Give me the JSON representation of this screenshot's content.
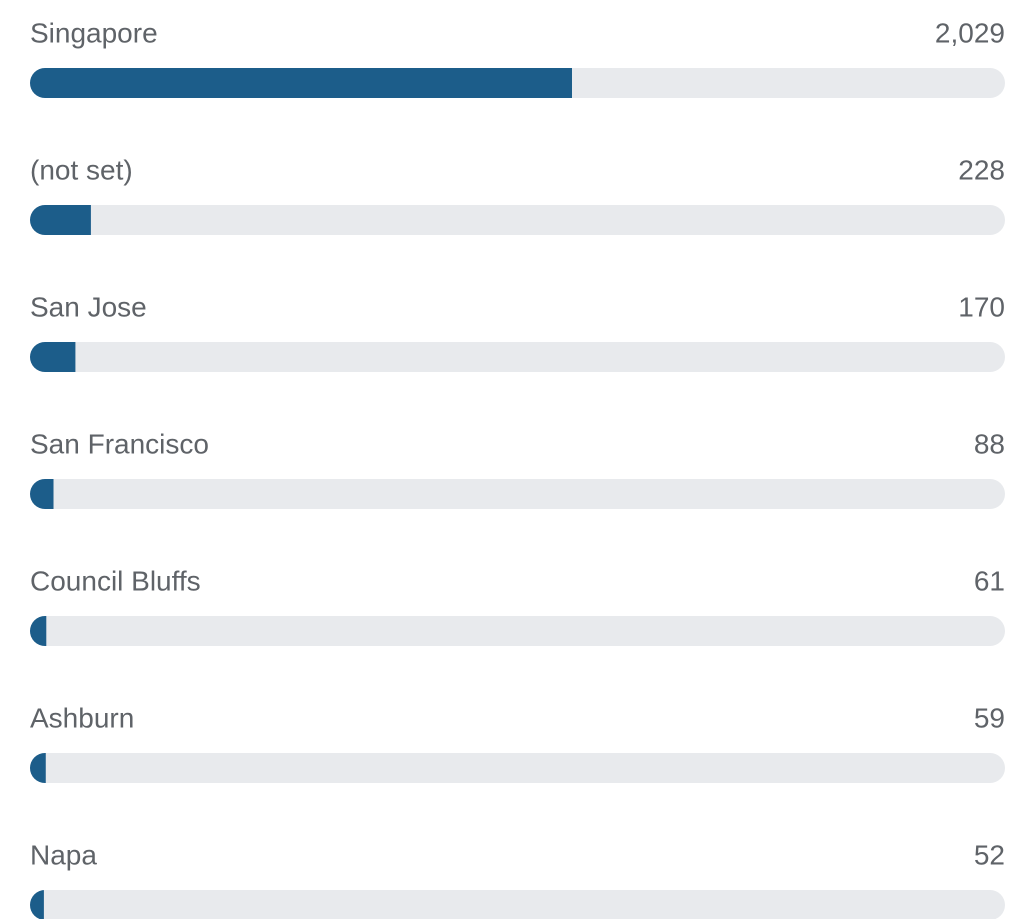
{
  "chart_data": {
    "type": "bar",
    "categories": [
      "Singapore",
      "(not set)",
      "San Jose",
      "San Francisco",
      "Council Bluffs",
      "Ashburn",
      "Napa"
    ],
    "values": [
      2029,
      228,
      170,
      88,
      61,
      59,
      52
    ],
    "value_labels": [
      "2,029",
      "228",
      "170",
      "88",
      "61",
      "59",
      "52"
    ],
    "color": "#1c5d8a",
    "xlim": [
      0,
      3650
    ]
  }
}
